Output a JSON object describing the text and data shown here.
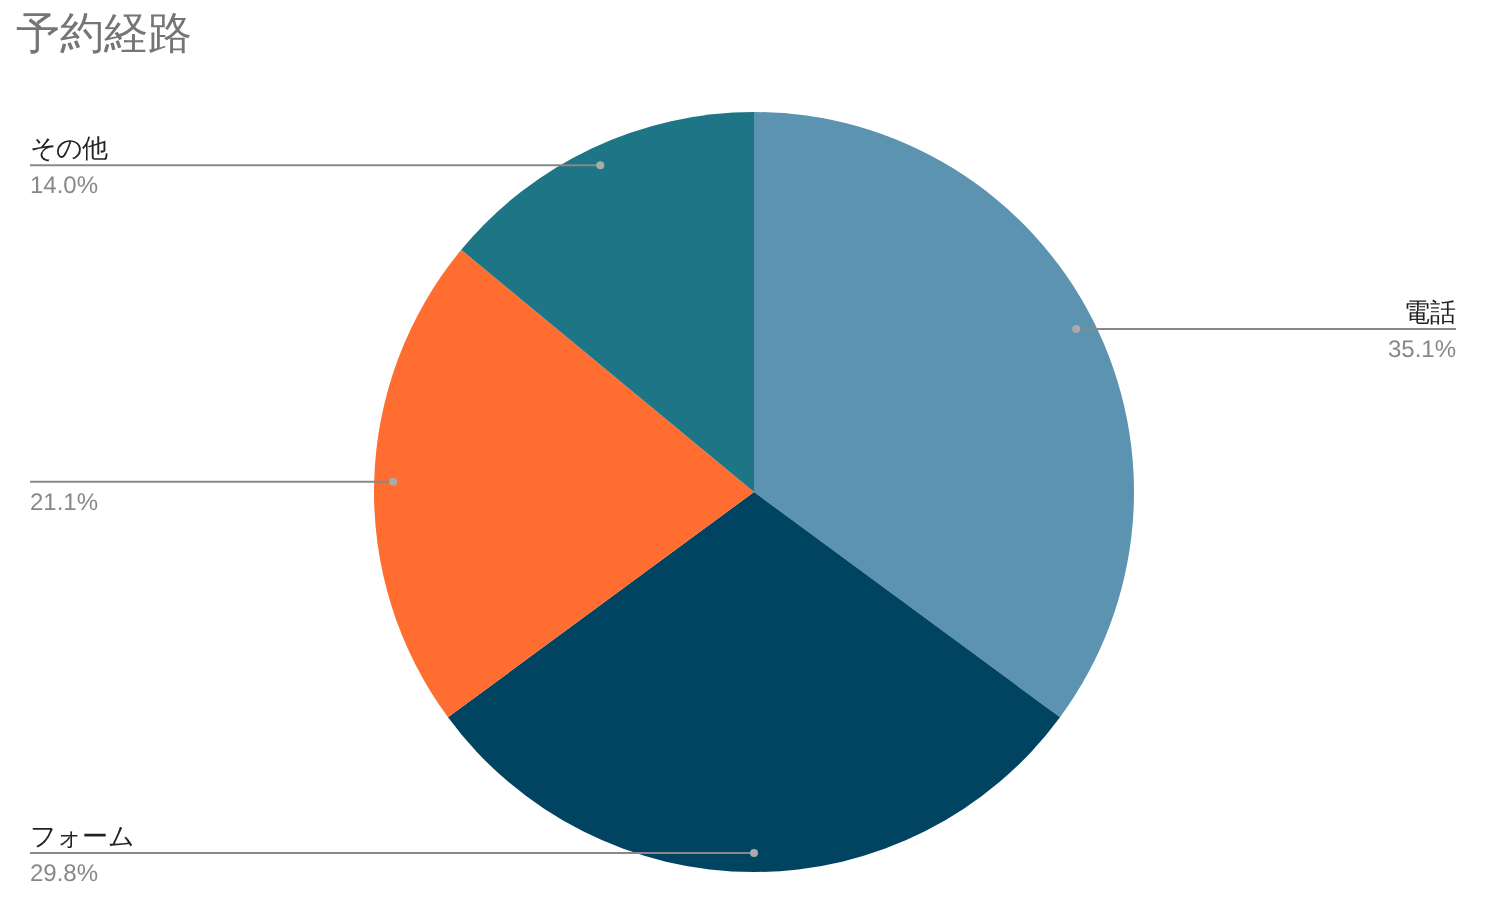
{
  "chart_data": {
    "type": "pie",
    "title": "予約経路",
    "categories": [
      "電話",
      "フォーム",
      null,
      "その他"
    ],
    "values": [
      35.1,
      29.8,
      21.1,
      14.0
    ],
    "value_labels": [
      "35.1%",
      "29.8%",
      "21.1%",
      "14.0%"
    ],
    "colors": [
      "#5b93b0",
      "#004462",
      "#ff6d31",
      "#1d7585"
    ],
    "legend": false
  }
}
